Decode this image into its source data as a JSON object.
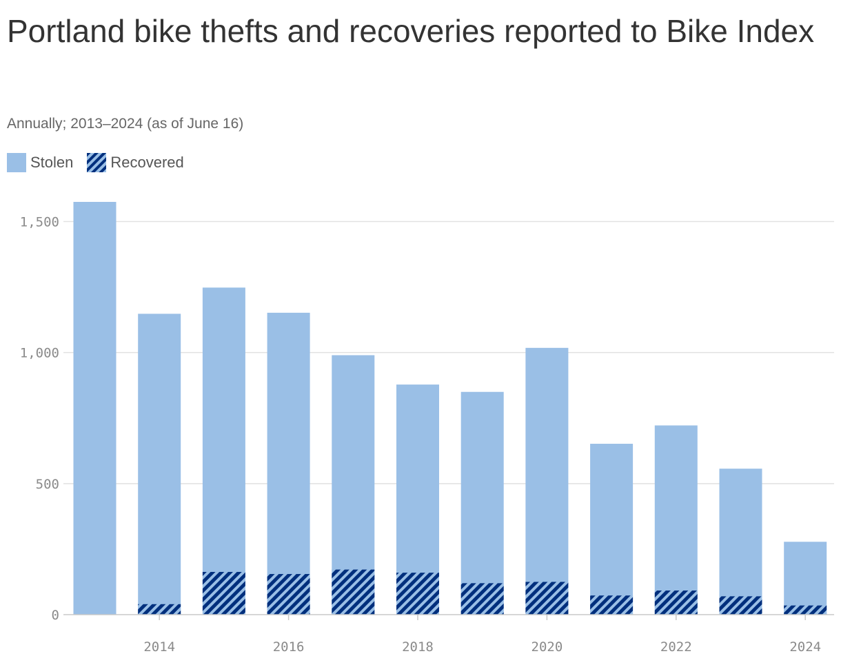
{
  "title": "Portland bike thefts and recoveries reported to Bike Index",
  "subtitle": "Annually; 2013–2024 (as of June 16)",
  "legend": {
    "stolen_label": "Stolen",
    "recovered_label": "Recovered"
  },
  "colors": {
    "stolen": "#9abfe6",
    "recovered": "#002f7d",
    "grid": "#e1e1e1",
    "axis": "#c8c8c8"
  },
  "chart_data": {
    "type": "bar",
    "stacking": "overlay",
    "categories": [
      "2013",
      "2014",
      "2015",
      "2016",
      "2017",
      "2018",
      "2019",
      "2020",
      "2021",
      "2022",
      "2023",
      "2024"
    ],
    "series": [
      {
        "name": "Stolen",
        "values": [
          1575,
          1148,
          1248,
          1152,
          990,
          878,
          850,
          1018,
          652,
          722,
          557,
          278
        ]
      },
      {
        "name": "Recovered",
        "values": [
          0,
          40,
          163,
          155,
          172,
          160,
          120,
          125,
          73,
          92,
          70,
          35
        ]
      }
    ],
    "ylim": [
      0,
      1575
    ],
    "yticks": [
      0,
      500,
      1000,
      1500
    ],
    "ytick_labels": [
      "0",
      "500",
      "1,000",
      "1,500"
    ],
    "xtick_labels": [
      "2014",
      "2016",
      "2018",
      "2020",
      "2022",
      "2024"
    ],
    "grid": true,
    "legend_position": "top-left"
  }
}
